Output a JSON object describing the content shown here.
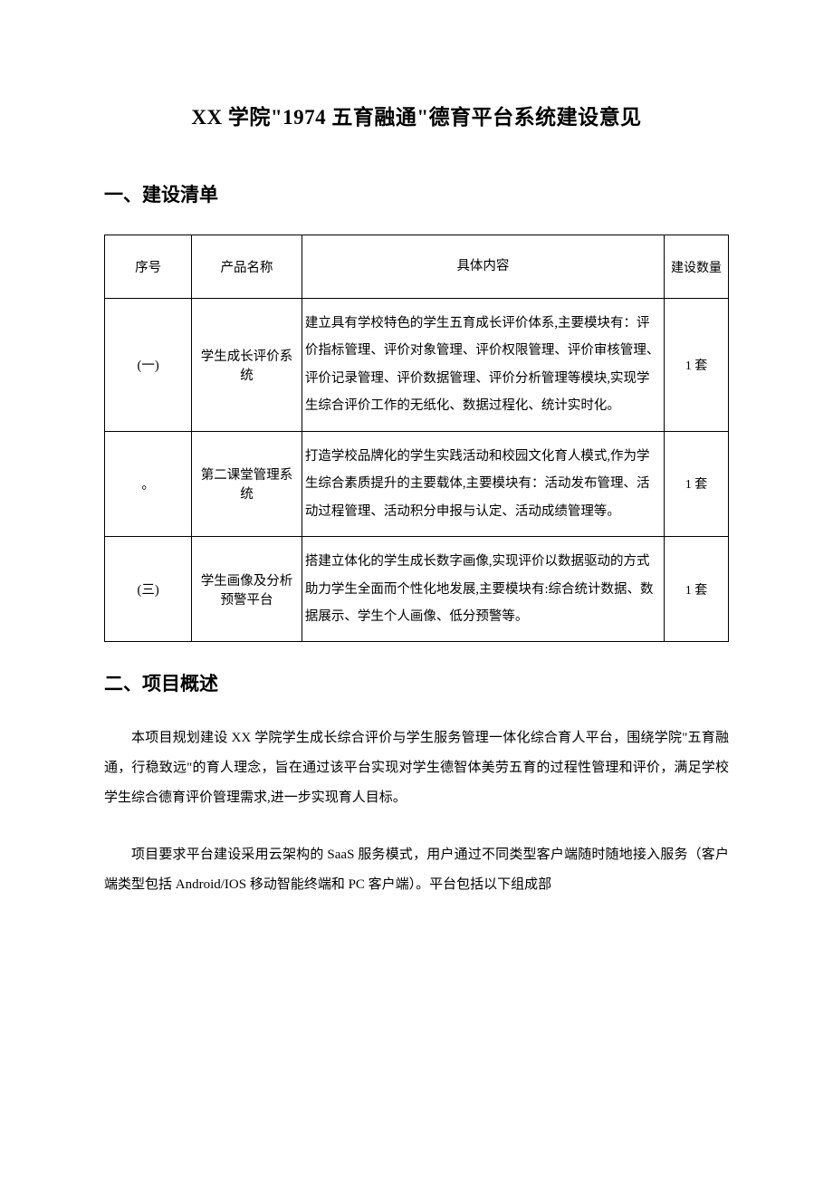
{
  "title": "XX 学院\"1974 五育融通\"德育平台系统建设意见",
  "section1": {
    "heading": "一、建设清单",
    "table": {
      "columns": [
        "序号",
        "产品名称",
        "具体内容",
        "建设数量"
      ],
      "rows": [
        {
          "seq": "(一)",
          "name": "学生成长评价系统",
          "content": "建立具有学校特色的学生五育成长评价体系,主要模块有：评价指标管理、评价对象管理、评价权限管理、评价审核管理、评价记录管理、评价数据管理、评价分析管理等模块,实现学生综合评价工作的无纸化、数据过程化、统计实时化。",
          "qty": "1 套"
        },
        {
          "seq": "。",
          "name": "第二课堂管理系统",
          "content": "打造学校品牌化的学生实践活动和校园文化育人模式,作为学生综合素质提升的主要载体,主要模块有：活动发布管理、活动过程管理、活动积分申报与认定、活动成绩管理等。",
          "qty": "1 套"
        },
        {
          "seq": "(三)",
          "name": "学生画像及分析预警平台",
          "content": "搭建立体化的学生成长数字画像,实现评价以数据驱动的方式助力学生全面而个性化地发展,主要模块有:综合统计数据、数据展示、学生个人画像、低分预警等。",
          "qty": "1 套"
        }
      ]
    }
  },
  "section2": {
    "heading": "二、项目概述",
    "paragraphs": [
      "本项目规划建设 XX 学院学生成长综合评价与学生服务管理一体化综合育人平台，围绕学院\"五育融通，行稳致远\"的育人理念，旨在通过该平台实现对学生德智体美劳五育的过程性管理和评价，满足学校学生综合德育评价管理需求,进一步实现育人目标。",
      "项目要求平台建设采用云架构的 SaaS 服务模式，用户通过不同类型客户端随时随地接入服务（客户端类型包括 Android/IOS 移动智能终端和 PC 客户端）。平台包括以下组成部"
    ]
  }
}
